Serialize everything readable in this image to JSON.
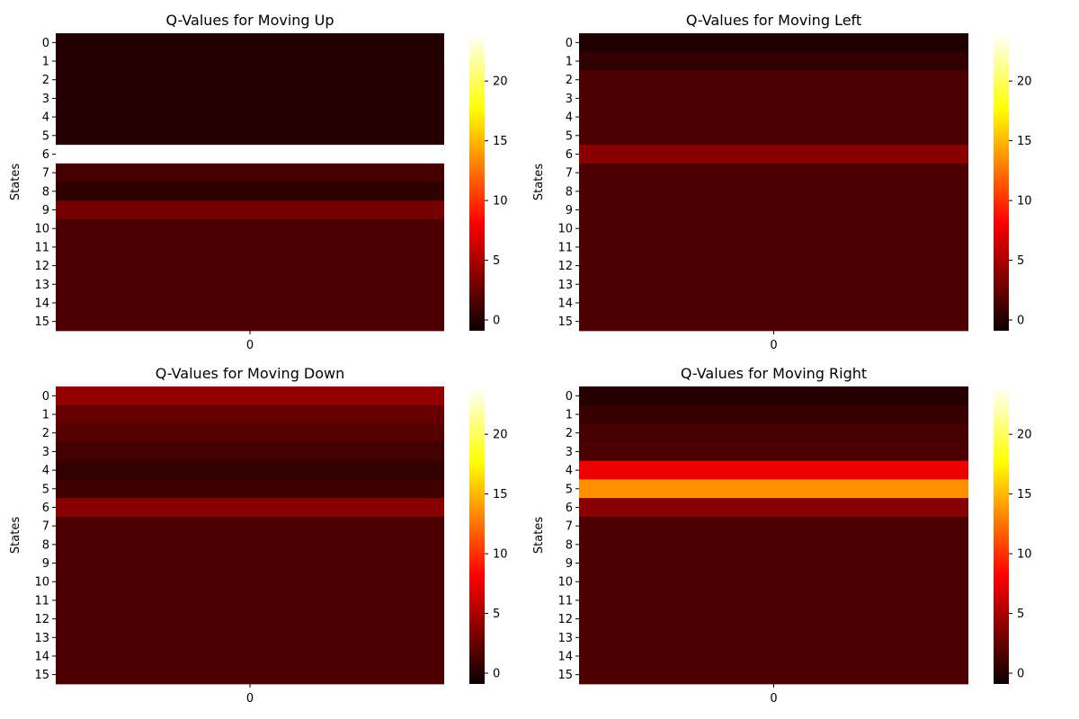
{
  "chart_data": [
    {
      "type": "heatmap",
      "title": "Q-Values for Moving Up",
      "ylabel": "States",
      "xlabel": "",
      "x_categories": [
        "0"
      ],
      "y_categories": [
        "0",
        "1",
        "2",
        "3",
        "4",
        "5",
        "6",
        "7",
        "8",
        "9",
        "10",
        "11",
        "12",
        "13",
        "14",
        "15"
      ],
      "values": [
        -0.7,
        -0.6,
        -0.6,
        -0.6,
        -0.6,
        -0.6,
        24.5,
        0.6,
        -0.3,
        2.2,
        0.8,
        0.8,
        0.8,
        0.8,
        0.8,
        0.8
      ],
      "colorbar": {
        "colormap": "hot",
        "range": [
          -0.9,
          24
        ],
        "ticks": [
          "0",
          "5",
          "10",
          "15",
          "20"
        ]
      }
    },
    {
      "type": "heatmap",
      "title": "Q-Values for Moving Left",
      "ylabel": "States",
      "xlabel": "",
      "x_categories": [
        "0"
      ],
      "y_categories": [
        "0",
        "1",
        "2",
        "3",
        "4",
        "5",
        "6",
        "7",
        "8",
        "9",
        "10",
        "11",
        "12",
        "13",
        "14",
        "15"
      ],
      "values": [
        -0.8,
        -0.2,
        0.8,
        0.8,
        0.8,
        0.8,
        3.0,
        0.8,
        0.8,
        0.8,
        0.8,
        0.8,
        0.8,
        0.8,
        0.8,
        0.8
      ],
      "colorbar": {
        "colormap": "hot",
        "range": [
          -0.9,
          24
        ],
        "ticks": [
          "0",
          "5",
          "10",
          "15",
          "20"
        ]
      }
    },
    {
      "type": "heatmap",
      "title": "Q-Values for Moving Down",
      "ylabel": "States",
      "xlabel": "",
      "x_categories": [
        "0"
      ],
      "y_categories": [
        "0",
        "1",
        "2",
        "3",
        "4",
        "5",
        "6",
        "7",
        "8",
        "9",
        "10",
        "11",
        "12",
        "13",
        "14",
        "15"
      ],
      "values": [
        3.3,
        1.7,
        1.1,
        0.5,
        -0.1,
        0.3,
        3.0,
        0.8,
        0.8,
        0.8,
        0.8,
        0.8,
        0.8,
        0.8,
        0.8,
        0.8
      ],
      "colorbar": {
        "colormap": "hot",
        "range": [
          -0.9,
          24
        ],
        "ticks": [
          "0",
          "5",
          "10",
          "15",
          "20"
        ]
      }
    },
    {
      "type": "heatmap",
      "title": "Q-Values for Moving Right",
      "ylabel": "States",
      "xlabel": "",
      "x_categories": [
        "0"
      ],
      "y_categories": [
        "0",
        "1",
        "2",
        "3",
        "4",
        "5",
        "6",
        "7",
        "8",
        "9",
        "10",
        "11",
        "12",
        "13",
        "14",
        "15"
      ],
      "values": [
        -0.6,
        0.0,
        0.6,
        0.8,
        6.5,
        13.5,
        3.0,
        0.8,
        0.8,
        0.8,
        0.8,
        0.8,
        0.8,
        0.8,
        0.8,
        0.8
      ],
      "colorbar": {
        "colormap": "hot",
        "range": [
          -0.9,
          24
        ],
        "ticks": [
          "0",
          "5",
          "10",
          "15",
          "20"
        ]
      }
    }
  ]
}
